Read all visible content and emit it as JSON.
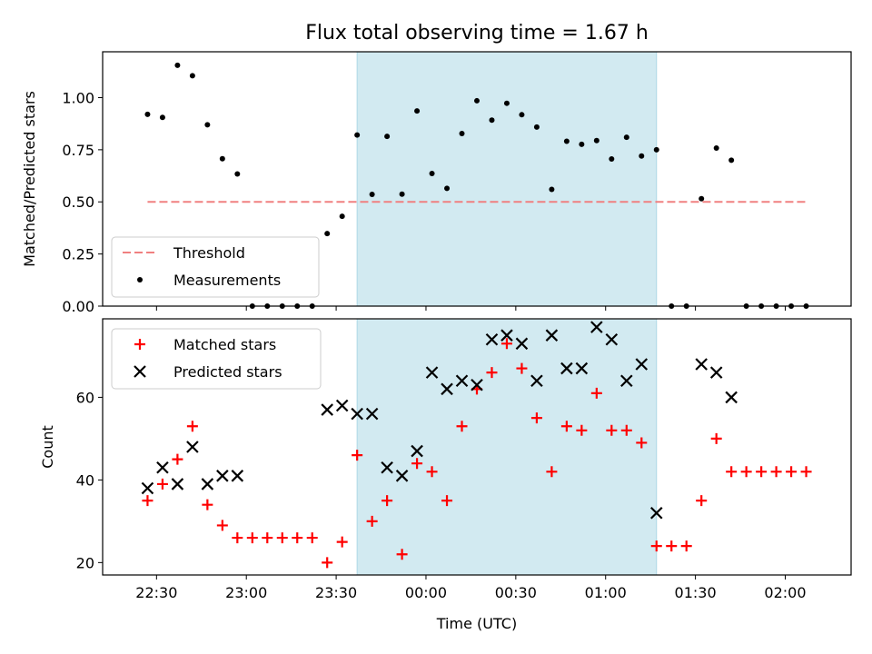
{
  "title": "Flux total observing time = 1.67 h",
  "chart_data": [
    {
      "type": "scatter",
      "panel": "top",
      "ylabel": "Matched/Predicted stars",
      "ylim": [
        0,
        1.22
      ],
      "yticks": [
        0.0,
        0.25,
        0.5,
        0.75,
        1.0
      ],
      "ytick_labels": [
        "0.00",
        "0.25",
        "0.50",
        "0.75",
        "1.00"
      ],
      "threshold": 0.5,
      "legend": {
        "placement": "lower-left",
        "entries": [
          "Threshold",
          "Measurements"
        ]
      },
      "series": [
        {
          "name": "Measurements",
          "color": "#000000",
          "points": [
            [
              "22:27",
              0.92
            ],
            [
              "22:32",
              0.905
            ],
            [
              "22:37",
              1.155
            ],
            [
              "22:42",
              1.105
            ],
            [
              "22:47",
              0.87
            ],
            [
              "22:52",
              0.707
            ],
            [
              "22:57",
              0.634
            ],
            [
              "23:02",
              0.0
            ],
            [
              "23:07",
              0.0
            ],
            [
              "23:12",
              0.0
            ],
            [
              "23:17",
              0.0
            ],
            [
              "23:22",
              0.0
            ],
            [
              "23:27",
              0.348
            ],
            [
              "23:32",
              0.431
            ],
            [
              "23:37",
              0.821
            ],
            [
              "23:42",
              0.536
            ],
            [
              "23:47",
              0.814
            ],
            [
              "23:52",
              0.537
            ],
            [
              "23:57",
              0.936
            ],
            [
              "00:02",
              0.636
            ],
            [
              "00:07",
              0.565
            ],
            [
              "00:12",
              0.828
            ],
            [
              "00:17",
              0.985
            ],
            [
              "00:22",
              0.892
            ],
            [
              "00:27",
              0.973
            ],
            [
              "00:32",
              0.918
            ],
            [
              "00:37",
              0.859
            ],
            [
              "00:42",
              0.56
            ],
            [
              "00:47",
              0.791
            ],
            [
              "00:52",
              0.776
            ],
            [
              "00:57",
              0.794
            ],
            [
              "01:02",
              0.706
            ],
            [
              "01:07",
              0.81
            ],
            [
              "01:12",
              0.72
            ],
            [
              "01:17",
              0.75
            ],
            [
              "01:22",
              0.0
            ],
            [
              "01:27",
              0.0
            ],
            [
              "01:32",
              0.515
            ],
            [
              "01:37",
              0.758
            ],
            [
              "01:42",
              0.7
            ],
            [
              "01:47",
              0.0
            ],
            [
              "01:52",
              0.0
            ],
            [
              "01:57",
              0.0
            ],
            [
              "02:02",
              0.0
            ],
            [
              "02:07",
              0.0
            ]
          ]
        },
        {
          "name": "Threshold",
          "color": "#f08080",
          "style": "dashed",
          "points": [
            [
              "22:27",
              0.5
            ],
            [
              "02:07",
              0.5
            ]
          ]
        }
      ]
    },
    {
      "type": "scatter",
      "panel": "bottom",
      "ylabel": "Count",
      "xlabel": "Time (UTC)",
      "ylim": [
        17,
        79
      ],
      "yticks": [
        20,
        40,
        60
      ],
      "x_tick_labels": [
        "22:30",
        "23:00",
        "23:30",
        "00:00",
        "00:30",
        "01:00",
        "01:30",
        "02:00"
      ],
      "x_tick_times": [
        "22:30",
        "23:00",
        "23:30",
        "00:00",
        "00:30",
        "01:00",
        "01:30",
        "02:00"
      ],
      "legend": {
        "placement": "upper-left",
        "entries": [
          "Matched stars",
          "Predicted stars"
        ]
      },
      "series": [
        {
          "name": "Matched stars",
          "marker": "plus",
          "color": "#ff0000",
          "points": [
            [
              "22:27",
              35
            ],
            [
              "22:32",
              39
            ],
            [
              "22:37",
              45
            ],
            [
              "22:42",
              53
            ],
            [
              "22:47",
              34
            ],
            [
              "22:52",
              29
            ],
            [
              "22:57",
              26
            ],
            [
              "23:02",
              26
            ],
            [
              "23:07",
              26
            ],
            [
              "23:12",
              26
            ],
            [
              "23:17",
              26
            ],
            [
              "23:22",
              26
            ],
            [
              "23:27",
              20
            ],
            [
              "23:32",
              25
            ],
            [
              "23:37",
              46
            ],
            [
              "23:42",
              30
            ],
            [
              "23:47",
              35
            ],
            [
              "23:52",
              22
            ],
            [
              "23:57",
              44
            ],
            [
              "00:02",
              42
            ],
            [
              "00:07",
              35
            ],
            [
              "00:12",
              53
            ],
            [
              "00:17",
              62
            ],
            [
              "00:22",
              66
            ],
            [
              "00:27",
              73
            ],
            [
              "00:32",
              67
            ],
            [
              "00:37",
              55
            ],
            [
              "00:42",
              42
            ],
            [
              "00:47",
              53
            ],
            [
              "00:52",
              52
            ],
            [
              "00:57",
              61
            ],
            [
              "01:02",
              52
            ],
            [
              "01:07",
              52
            ],
            [
              "01:12",
              49
            ],
            [
              "01:17",
              24
            ],
            [
              "01:22",
              24
            ],
            [
              "01:27",
              24
            ],
            [
              "01:32",
              35
            ],
            [
              "01:37",
              50
            ],
            [
              "01:42",
              42
            ],
            [
              "01:47",
              42
            ],
            [
              "01:52",
              42
            ],
            [
              "01:57",
              42
            ],
            [
              "02:02",
              42
            ],
            [
              "02:07",
              42
            ]
          ]
        },
        {
          "name": "Predicted stars",
          "marker": "x",
          "color": "#000000",
          "points": [
            [
              "22:27",
              38
            ],
            [
              "22:32",
              43
            ],
            [
              "22:37",
              39
            ],
            [
              "22:42",
              48
            ],
            [
              "22:47",
              39
            ],
            [
              "22:52",
              41
            ],
            [
              "22:57",
              41
            ],
            [
              "23:27",
              57
            ],
            [
              "23:32",
              58
            ],
            [
              "23:37",
              56
            ],
            [
              "23:42",
              56
            ],
            [
              "23:47",
              43
            ],
            [
              "23:52",
              41
            ],
            [
              "23:57",
              47
            ],
            [
              "00:02",
              66
            ],
            [
              "00:07",
              62
            ],
            [
              "00:12",
              64
            ],
            [
              "00:17",
              63
            ],
            [
              "00:22",
              74
            ],
            [
              "00:27",
              75
            ],
            [
              "00:32",
              73
            ],
            [
              "00:37",
              64
            ],
            [
              "00:42",
              75
            ],
            [
              "00:47",
              67
            ],
            [
              "00:52",
              67
            ],
            [
              "00:57",
              77
            ],
            [
              "01:02",
              74
            ],
            [
              "01:07",
              64
            ],
            [
              "01:12",
              68
            ],
            [
              "01:17",
              32
            ],
            [
              "01:32",
              68
            ],
            [
              "01:37",
              66
            ],
            [
              "01:42",
              60
            ]
          ]
        }
      ]
    }
  ],
  "observing_window": {
    "start": "23:37",
    "end": "01:17",
    "color": "#add8e6"
  }
}
